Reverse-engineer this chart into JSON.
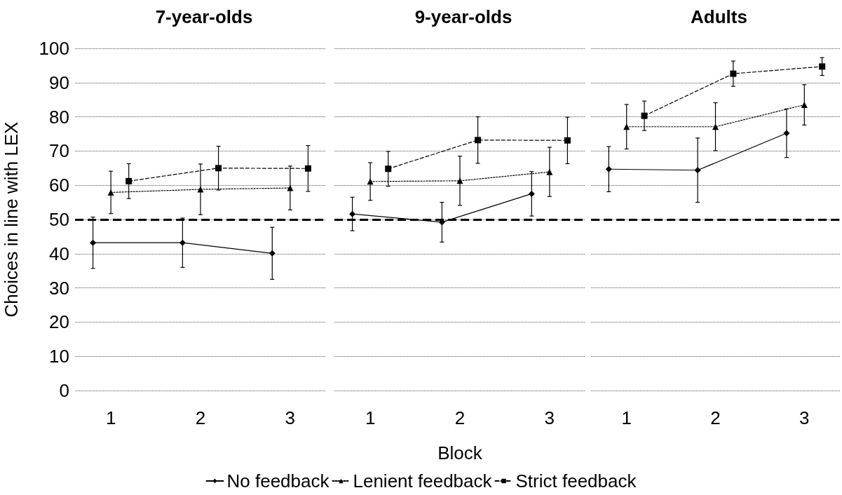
{
  "chart_data": [
    {
      "type": "line",
      "title": "7-year-olds",
      "ylabel": "Choices in line with LEX",
      "xlim": [
        0.6,
        3.4
      ],
      "xticks": [
        1,
        2,
        3
      ],
      "ylim": [
        0,
        100
      ],
      "yticks": [
        0,
        10,
        20,
        30,
        40,
        50,
        60,
        70,
        80,
        90,
        100
      ],
      "grid": "y",
      "legend": false,
      "ref_lines": [
        {
          "axis": "y",
          "value": 50,
          "color": "#000000",
          "line_style": "dashed"
        }
      ],
      "series": [
        {
          "color": "#000000",
          "marker": "diamond",
          "line_style": "solid",
          "x": [
            0.8,
            1.8,
            2.8
          ],
          "values": [
            43.2,
            43.2,
            40.1
          ],
          "errors": [
            7.5,
            7.2,
            7.6
          ]
        },
        {
          "color": "#000000",
          "marker": "triangle",
          "line_style": "dotted",
          "x": [
            1,
            2,
            3
          ],
          "values": [
            57.9,
            58.8,
            59.2
          ],
          "errors": [
            6.2,
            7.4,
            6.4
          ]
        },
        {
          "color": "#000000",
          "marker": "square",
          "line_style": "dashed",
          "x": [
            1.2,
            2.2,
            3.2
          ],
          "values": [
            61.2,
            65.0,
            64.9
          ],
          "errors": [
            5.1,
            6.4,
            6.7
          ]
        }
      ]
    },
    {
      "type": "line",
      "title": "9-year-olds",
      "xlabel": "Block",
      "xlim": [
        0.6,
        3.4
      ],
      "xticks": [
        1,
        2,
        3
      ],
      "ylim": [
        0,
        100
      ],
      "yticks": [
        0,
        10,
        20,
        30,
        40,
        50,
        60,
        70,
        80,
        90,
        100
      ],
      "grid": "y",
      "legend": "bottom",
      "tick_labels": "x",
      "ref_lines": [
        {
          "axis": "y",
          "value": 50,
          "color": "#000000",
          "line_style": "dashed"
        }
      ],
      "series": [
        {
          "name": "No feedback",
          "color": "#000000",
          "marker": "diamond",
          "line_style": "solid",
          "x": [
            0.8,
            1.8,
            2.8
          ],
          "values": [
            51.6,
            49.2,
            57.5
          ],
          "errors": [
            4.9,
            5.8,
            6.5
          ]
        },
        {
          "name": "Lenient feedback",
          "color": "#000000",
          "marker": "triangle",
          "line_style": "dotted",
          "x": [
            1,
            2,
            3
          ],
          "values": [
            61.1,
            61.3,
            63.9
          ],
          "errors": [
            5.5,
            7.2,
            7.2
          ]
        },
        {
          "name": "Strict feedback",
          "color": "#000000",
          "marker": "square",
          "line_style": "dashed",
          "x": [
            1.2,
            2.2,
            3.2
          ],
          "values": [
            64.8,
            73.2,
            73.1
          ],
          "errors": [
            5.1,
            6.8,
            6.8
          ]
        }
      ]
    },
    {
      "type": "line",
      "title": "Adults",
      "xlim": [
        0.6,
        3.4
      ],
      "xticks": [
        1,
        2,
        3
      ],
      "ylim": [
        0,
        100
      ],
      "yticks": [
        0,
        10,
        20,
        30,
        40,
        50,
        60,
        70,
        80,
        90,
        100
      ],
      "grid": "y",
      "legend": false,
      "tick_labels": "x",
      "ref_lines": [
        {
          "axis": "y",
          "value": 50,
          "color": "#000000",
          "line_style": "dashed"
        }
      ],
      "series": [
        {
          "color": "#000000",
          "marker": "diamond",
          "line_style": "solid",
          "x": [
            0.8,
            1.8,
            2.8
          ],
          "values": [
            64.7,
            64.4,
            75.2
          ],
          "errors": [
            6.6,
            9.4,
            7.1
          ]
        },
        {
          "color": "#000000",
          "marker": "triangle",
          "line_style": "dotted",
          "x": [
            1,
            2,
            3
          ],
          "values": [
            77.1,
            77.1,
            83.5
          ],
          "errors": [
            6.5,
            7.0,
            5.9
          ]
        },
        {
          "color": "#000000",
          "marker": "square",
          "line_style": "dashed",
          "x": [
            1.2,
            2.2,
            3.2
          ],
          "values": [
            80.3,
            92.6,
            94.7
          ],
          "errors": [
            4.3,
            3.7,
            2.6
          ]
        }
      ]
    }
  ]
}
